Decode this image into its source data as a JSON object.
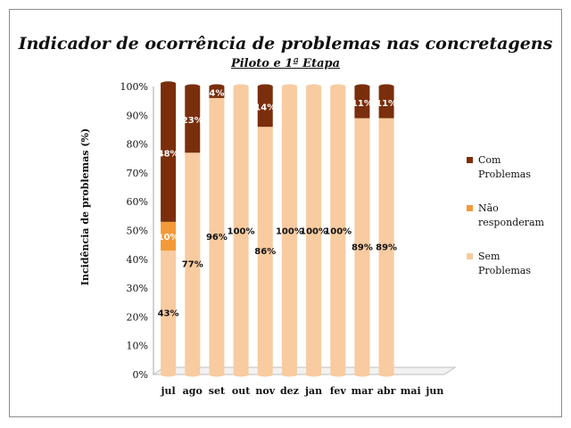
{
  "chart_data": {
    "type": "bar",
    "stacked": true,
    "title": "Indicador de ocorrência de problemas nas concretagens",
    "subtitle": "Piloto e 1ª Etapa",
    "ylabel": "Incidência de problemas (%)",
    "xlabel": "",
    "ylim": [
      0,
      100
    ],
    "yticks": [
      "0%",
      "10%",
      "20%",
      "30%",
      "40%",
      "50%",
      "60%",
      "70%",
      "80%",
      "90%",
      "100%"
    ],
    "categories": [
      "jul",
      "ago",
      "set",
      "out",
      "nov",
      "dez",
      "jan",
      "fev",
      "mar",
      "abr",
      "mai",
      "jun"
    ],
    "series": [
      {
        "name": "Sem Problemas",
        "color": "#f8cba0",
        "values": [
          43,
          77,
          96,
          100,
          86,
          100,
          100,
          100,
          89,
          89,
          null,
          null
        ],
        "labels": [
          "43%",
          "77%",
          "96%",
          "100%",
          "86%",
          "100%",
          "100%",
          "100%",
          "89%",
          "89%",
          "",
          ""
        ]
      },
      {
        "name": "Não responderam",
        "color": "#f29a3a",
        "values": [
          10,
          0,
          0,
          0,
          0,
          0,
          0,
          0,
          0,
          0,
          null,
          null
        ],
        "labels": [
          "10%",
          "",
          "",
          "",
          "",
          "",
          "",
          "",
          "",
          "",
          "",
          ""
        ]
      },
      {
        "name": "Com Problemas",
        "color": "#7a2e0c",
        "values": [
          48,
          23,
          4,
          0,
          14,
          0,
          0,
          0,
          11,
          11,
          null,
          null
        ],
        "labels": [
          "48%",
          "23%",
          "4%",
          "",
          "14%",
          "",
          "",
          "",
          "11%",
          "11%",
          "",
          ""
        ]
      }
    ],
    "legend_position": "right",
    "grid": false
  },
  "legend": {
    "com_line1": "Com",
    "com_line2": "Problemas",
    "nao_line1": "Não",
    "nao_line2": "responderam",
    "sem_line1": "Sem",
    "sem_line2": "Problemas"
  }
}
